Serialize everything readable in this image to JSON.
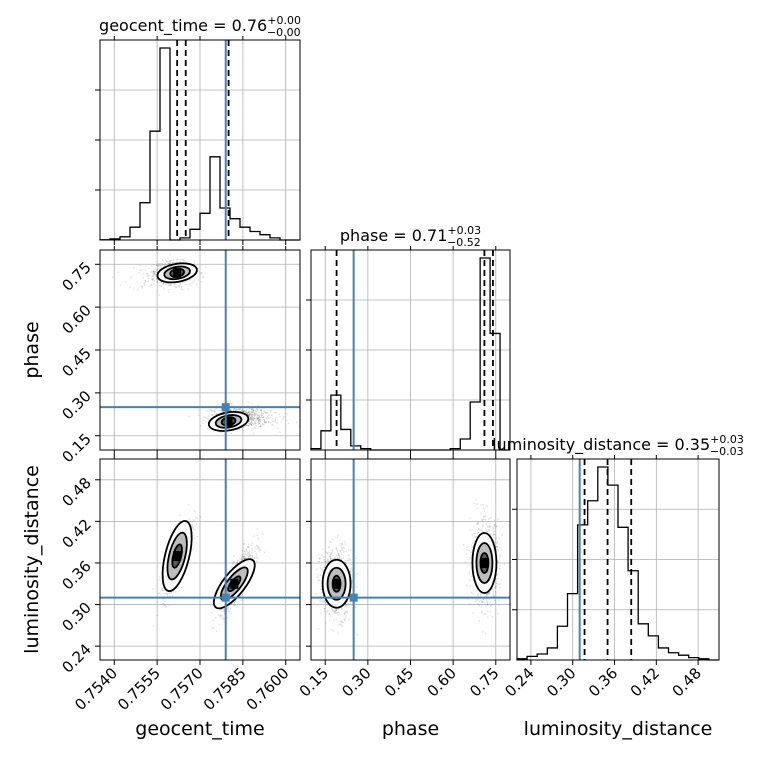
{
  "chart_data": {
    "type": "corner",
    "parameters": [
      {
        "name": "geocent_time",
        "xlabel": "geocent_time",
        "title": {
          "base": "geocent_time = 0.76",
          "plus": "+0.00",
          "minus": "−0.00"
        },
        "range": [
          0.7535,
          0.7605
        ],
        "ticks": [
          0.754,
          0.7555,
          0.757,
          0.7585,
          0.76
        ],
        "tick_labels": [
          "0.7540",
          "0.7555",
          "0.7570",
          "0.7585",
          "0.7600"
        ],
        "truth": 0.7579,
        "quantiles": [
          0.7562,
          0.7565,
          0.758
        ],
        "histogram": {
          "edges": [
            0.7535,
            0.75385,
            0.7542,
            0.75455,
            0.7549,
            0.75525,
            0.7556,
            0.75595,
            0.7563,
            0.75665,
            0.757,
            0.75735,
            0.7577,
            0.75805,
            0.7584,
            0.75875,
            0.7591,
            0.75945,
            0.7598,
            0.76015,
            0.7605
          ],
          "counts": [
            0.2,
            1,
            3,
            12,
            35,
            102,
            180,
            0,
            2,
            10,
            25,
            78,
            30,
            20,
            12,
            8,
            5,
            2,
            0,
            0
          ]
        }
      },
      {
        "name": "phase",
        "ylabel": "phase",
        "xlabel": "phase",
        "title": {
          "base": "phase = 0.71",
          "plus": "+0.03",
          "minus": "−0.52"
        },
        "range": [
          0.1,
          0.8
        ],
        "ticks": [
          0.15,
          0.3,
          0.45,
          0.6,
          0.75
        ],
        "tick_labels": [
          "0.15",
          "0.30",
          "0.45",
          "0.60",
          "0.75"
        ],
        "truth": 0.25,
        "quantiles": [
          0.19,
          0.71,
          0.74
        ],
        "histogram": {
          "edges": [
            0.1,
            0.135,
            0.17,
            0.205,
            0.24,
            0.275,
            0.31,
            0.345,
            0.38,
            0.415,
            0.45,
            0.485,
            0.52,
            0.555,
            0.59,
            0.625,
            0.66,
            0.695,
            0.73,
            0.765,
            0.8
          ],
          "counts": [
            1,
            14,
            40,
            15,
            3,
            1,
            0,
            0,
            0,
            0,
            0,
            0,
            0,
            0,
            1,
            8,
            35,
            140,
            85,
            0
          ]
        }
      },
      {
        "name": "luminosity_distance",
        "ylabel": "luminosity_distance",
        "xlabel": "luminosity_distance",
        "title": {
          "base": "luminosity_distance = 0.35",
          "plus": "+0.03",
          "minus": "−0.03"
        },
        "range": [
          0.22,
          0.51
        ],
        "ticks": [
          0.24,
          0.3,
          0.36,
          0.42,
          0.48
        ],
        "tick_labels": [
          "0.24",
          "0.30",
          "0.36",
          "0.42",
          "0.48"
        ],
        "truth": 0.31,
        "quantiles": [
          0.317,
          0.35,
          0.384
        ],
        "histogram": {
          "edges": [
            0.22,
            0.2345,
            0.249,
            0.2635,
            0.278,
            0.2925,
            0.307,
            0.3215,
            0.336,
            0.3505,
            0.365,
            0.3795,
            0.394,
            0.4085,
            0.423,
            0.4375,
            0.452,
            0.4665,
            0.481,
            0.4955,
            0.51
          ],
          "counts": [
            1,
            3,
            5,
            10,
            28,
            55,
            112,
            132,
            160,
            145,
            110,
            74,
            30,
            20,
            10,
            6,
            4,
            2,
            1,
            0
          ]
        }
      }
    ],
    "joint_densities": [
      {
        "x": "geocent_time",
        "y": "phase",
        "modes": [
          {
            "x": 0.7562,
            "y": 0.72
          },
          {
            "x": 0.758,
            "y": 0.2
          }
        ]
      },
      {
        "x": "geocent_time",
        "y": "luminosity_distance",
        "modes": [
          {
            "x": 0.7562,
            "y": 0.37
          },
          {
            "x": 0.7582,
            "y": 0.33
          }
        ]
      },
      {
        "x": "phase",
        "y": "luminosity_distance",
        "modes": [
          {
            "x": 0.19,
            "y": 0.33
          },
          {
            "x": 0.71,
            "y": 0.36
          }
        ]
      }
    ],
    "colors": {
      "truth": "#4682b4",
      "line": "#000000",
      "grid": "#b0b0b0",
      "samples": "#000000"
    },
    "grid": true
  }
}
